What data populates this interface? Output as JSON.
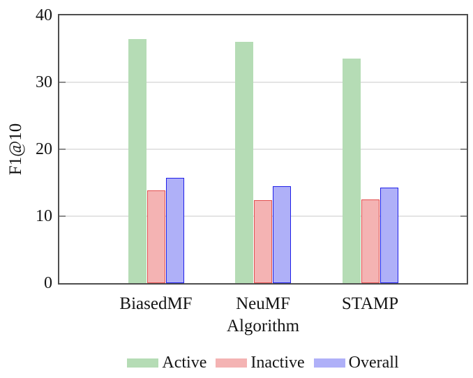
{
  "chart_data": {
    "type": "bar",
    "title": "",
    "categories": [
      "BiasedMF",
      "NeuMF",
      "STAMP"
    ],
    "series": [
      {
        "name": "Active",
        "values": [
          36.5,
          36.0,
          33.5
        ],
        "fill": "#b5dcb5",
        "stroke": null
      },
      {
        "name": "Inactive",
        "values": [
          13.9,
          12.4,
          12.5
        ],
        "fill": "#f4b3b3",
        "stroke": "#e25050"
      },
      {
        "name": "Overall",
        "values": [
          15.7,
          14.5,
          14.3
        ],
        "fill": "#afb0f8",
        "stroke": "#1f1fe8"
      }
    ],
    "xlabel": "Algorithm",
    "ylabel": "F1@10",
    "ylim": [
      0,
      40
    ],
    "yticks": [
      0,
      10,
      20,
      30,
      40
    ],
    "grid": "horizontal",
    "legend_position": "bottom",
    "frame_color": "#4e4e4e",
    "gridline_color": "#e4e4e4",
    "tick_color": "#8b8b8b"
  }
}
